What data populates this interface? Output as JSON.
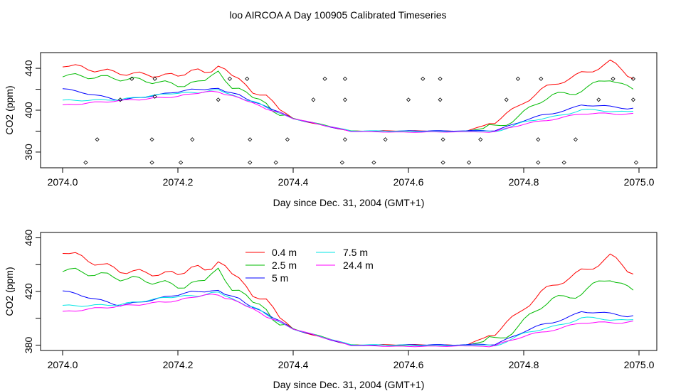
{
  "title": "loo AIRCOA A  Day 100905  Calibrated Timeseries",
  "colors": {
    "0.4 m": "#ff0000",
    "2.5 m": "#00bb00",
    "5 m": "#0000ff",
    "7.5 m": "#00e5e5",
    "24.4 m": "#ff00ff",
    "axis": "#000000"
  },
  "chart_data": [
    {
      "type": "line",
      "panel": "top",
      "xlabel": "Day since Dec. 31, 2004 (GMT+1)",
      "ylabel": "CO2 (ppm)",
      "xlim": [
        2074.0,
        2075.0
      ],
      "ylim": [
        345,
        455
      ],
      "xticks": [
        "2074.0",
        "2074.2",
        "2074.4",
        "2074.6",
        "2074.8",
        "2075.0"
      ],
      "yticks": [
        "360",
        "400",
        "440"
      ],
      "y_minor_ticks": [
        360,
        380,
        400,
        420,
        440
      ],
      "legend": "none",
      "series": [
        {
          "name": "0.4 m",
          "x": [
            2074.0,
            2074.1,
            2074.2,
            2074.27,
            2074.33,
            2074.4,
            2074.5,
            2074.6,
            2074.7,
            2074.75,
            2074.8,
            2074.85,
            2074.9,
            2074.95,
            2074.99
          ],
          "y": [
            443,
            438,
            432,
            442,
            420,
            392,
            380,
            380,
            380,
            388,
            410,
            422,
            437,
            444,
            430
          ]
        },
        {
          "name": "2.5 m",
          "x": [
            2074.0,
            2074.1,
            2074.2,
            2074.27,
            2074.33,
            2074.4,
            2074.5,
            2074.6,
            2074.7,
            2074.75,
            2074.8,
            2074.85,
            2074.9,
            2074.95,
            2074.99
          ],
          "y": [
            435,
            428,
            424,
            433,
            412,
            392,
            380,
            380,
            380,
            384,
            398,
            413,
            421,
            428,
            420
          ]
        },
        {
          "name": "5 m",
          "x": [
            2074.0,
            2074.1,
            2074.2,
            2074.27,
            2074.33,
            2074.4,
            2074.5,
            2074.6,
            2074.7,
            2074.75,
            2074.8,
            2074.85,
            2074.9,
            2074.95,
            2074.99
          ],
          "y": [
            420,
            410,
            418,
            421,
            409,
            392,
            380,
            380,
            380,
            381,
            390,
            397,
            405,
            403,
            402
          ]
        },
        {
          "name": "7.5 m",
          "x": [
            2074.0,
            2074.1,
            2074.2,
            2074.27,
            2074.33,
            2074.4,
            2074.5,
            2074.6,
            2074.7,
            2074.75,
            2074.8,
            2074.85,
            2074.9,
            2074.95,
            2074.99
          ],
          "y": [
            410,
            410,
            416,
            419,
            408,
            392,
            380,
            380,
            380,
            380,
            388,
            394,
            400,
            399,
            399
          ]
        },
        {
          "name": "24.4 m",
          "x": [
            2074.0,
            2074.1,
            2074.2,
            2074.27,
            2074.33,
            2074.4,
            2074.5,
            2074.6,
            2074.7,
            2074.75,
            2074.8,
            2074.85,
            2074.9,
            2074.95,
            2074.99
          ],
          "y": [
            404,
            409,
            414,
            418,
            407,
            392,
            380,
            379,
            379,
            380,
            386,
            392,
            396,
            397,
            397
          ]
        }
      ],
      "points": {
        "x": [
          2074.04,
          2074.06,
          2074.1,
          2074.12,
          2074.155,
          2074.155,
          2074.16,
          2074.16,
          2074.205,
          2074.225,
          2074.27,
          2074.29,
          2074.32,
          2074.325,
          2074.325,
          2074.37,
          2074.39,
          2074.435,
          2074.455,
          2074.485,
          2074.49,
          2074.49,
          2074.49,
          2074.54,
          2074.56,
          2074.6,
          2074.625,
          2074.655,
          2074.655,
          2074.66,
          2074.66,
          2074.705,
          2074.725,
          2074.77,
          2074.79,
          2074.825,
          2074.825,
          2074.83,
          2074.87,
          2074.89,
          2074.93,
          2074.955,
          2074.99,
          2074.99,
          2074.995
        ],
        "y": [
          350,
          372,
          410,
          430,
          350,
          372,
          413,
          430,
          350,
          372,
          410,
          430,
          430,
          372,
          350,
          350,
          372,
          410,
          430,
          350,
          372,
          410,
          430,
          350,
          372,
          410,
          430,
          410,
          430,
          372,
          350,
          350,
          372,
          410,
          430,
          350,
          372,
          430,
          350,
          372,
          410,
          430,
          410,
          430,
          350
        ]
      }
    },
    {
      "type": "line",
      "panel": "bottom",
      "xlabel": "Day since Dec. 31, 2004 (GMT+1)",
      "ylabel": "CO2 (ppm)",
      "xlim": [
        2074.0,
        2075.0
      ],
      "ylim": [
        376,
        464
      ],
      "xticks": [
        "2074.0",
        "2074.2",
        "2074.4",
        "2074.6",
        "2074.8",
        "2075.0"
      ],
      "yticks": [
        "380",
        "420",
        "460"
      ],
      "y_minor_ticks": [
        380,
        400,
        420,
        440,
        460
      ],
      "legend": "top-left, inside",
      "legend_entries": [
        "0.4 m",
        "2.5 m",
        "5 m",
        "7.5 m",
        "24.4 m"
      ],
      "series": [
        {
          "name": "0.4 m",
          "x": [
            2074.0,
            2074.1,
            2074.2,
            2074.27,
            2074.33,
            2074.4,
            2074.5,
            2074.6,
            2074.7,
            2074.75,
            2074.8,
            2074.85,
            2074.9,
            2074.95,
            2074.99
          ],
          "y": [
            450,
            438,
            432,
            442,
            420,
            392,
            380,
            380,
            380,
            388,
            410,
            422,
            437,
            444,
            433
          ]
        },
        {
          "name": "2.5 m",
          "x": [
            2074.0,
            2074.1,
            2074.2,
            2074.27,
            2074.33,
            2074.4,
            2074.5,
            2074.6,
            2074.7,
            2074.75,
            2074.8,
            2074.85,
            2074.9,
            2074.95,
            2074.99
          ],
          "y": [
            438,
            428,
            424,
            433,
            412,
            392,
            380,
            380,
            380,
            384,
            398,
            413,
            421,
            428,
            421
          ]
        },
        {
          "name": "5 m",
          "x": [
            2074.0,
            2074.1,
            2074.2,
            2074.27,
            2074.33,
            2074.4,
            2074.5,
            2074.6,
            2074.7,
            2074.75,
            2074.8,
            2074.85,
            2074.9,
            2074.95,
            2074.99
          ],
          "y": [
            420,
            410,
            418,
            421,
            409,
            392,
            380,
            380,
            380,
            381,
            390,
            397,
            405,
            403,
            402
          ]
        },
        {
          "name": "7.5 m",
          "x": [
            2074.0,
            2074.1,
            2074.2,
            2074.27,
            2074.33,
            2074.4,
            2074.5,
            2074.6,
            2074.7,
            2074.75,
            2074.8,
            2074.85,
            2074.9,
            2074.95,
            2074.99
          ],
          "y": [
            410,
            410,
            416,
            419,
            408,
            392,
            380,
            380,
            380,
            380,
            388,
            394,
            400,
            399,
            399
          ]
        },
        {
          "name": "24.4 m",
          "x": [
            2074.0,
            2074.1,
            2074.2,
            2074.27,
            2074.33,
            2074.4,
            2074.5,
            2074.6,
            2074.7,
            2074.75,
            2074.8,
            2074.85,
            2074.9,
            2074.95,
            2074.99
          ],
          "y": [
            404,
            409,
            414,
            418,
            407,
            392,
            380,
            379,
            379,
            380,
            386,
            392,
            396,
            397,
            398
          ]
        }
      ]
    }
  ]
}
